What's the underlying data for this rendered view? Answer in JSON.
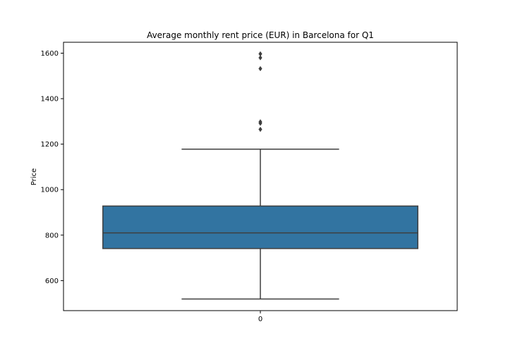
{
  "chart_data": {
    "type": "box",
    "title": "Average monthly rent price (EUR) in Barcelona for Q1",
    "xlabel": "",
    "ylabel": "Price",
    "ylim": [
      468,
      1648
    ],
    "yticks": [
      600,
      800,
      1000,
      1200,
      1400,
      1600
    ],
    "categories": [
      "0"
    ],
    "boxes": [
      {
        "category": "0",
        "whisker_low": 519,
        "q1": 741,
        "median": 810,
        "q3": 928,
        "whisker_high": 1178,
        "outliers": [
          1265,
          1292,
          1298,
          1532,
          1580,
          1597
        ]
      }
    ],
    "grid": false,
    "colors": {
      "box_fill": "#3274a1",
      "line": "#3f3f3f",
      "outlier": "#3f3f3f"
    }
  }
}
